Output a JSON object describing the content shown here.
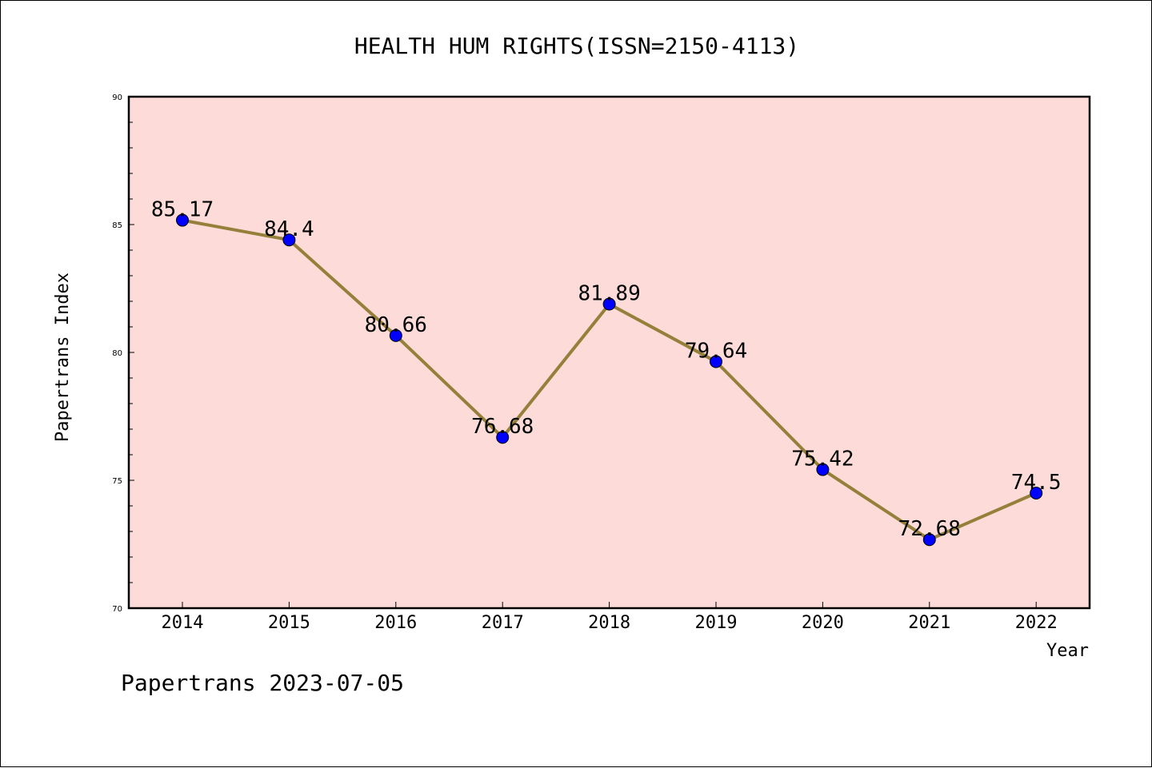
{
  "chart_data": {
    "type": "line",
    "title": "HEALTH HUM RIGHTS(ISSN=2150-4113)",
    "xlabel": "Year",
    "ylabel": "Papertrans Index",
    "categories": [
      "2014",
      "2015",
      "2016",
      "2017",
      "2018",
      "2019",
      "2020",
      "2021",
      "2022"
    ],
    "series": [
      {
        "values": [
          85.17,
          84.4,
          80.66,
          76.68,
          81.89,
          79.64,
          75.42,
          72.68,
          74.5
        ],
        "data_labels": [
          "85.17",
          "84.4",
          "80.66",
          "76.68",
          "81.89",
          "79.64",
          "75.42",
          "72.68",
          "74.5"
        ]
      }
    ],
    "ylim": [
      70,
      90
    ],
    "yticks": [
      "70",
      "75",
      "80",
      "85",
      "90"
    ],
    "grid": false,
    "legend": "none",
    "colors": {
      "plot_background": "#fddbd8",
      "line": "#94803a",
      "marker": "#0000ff"
    }
  },
  "footer": {
    "text": "Papertrans 2023-07-05"
  }
}
